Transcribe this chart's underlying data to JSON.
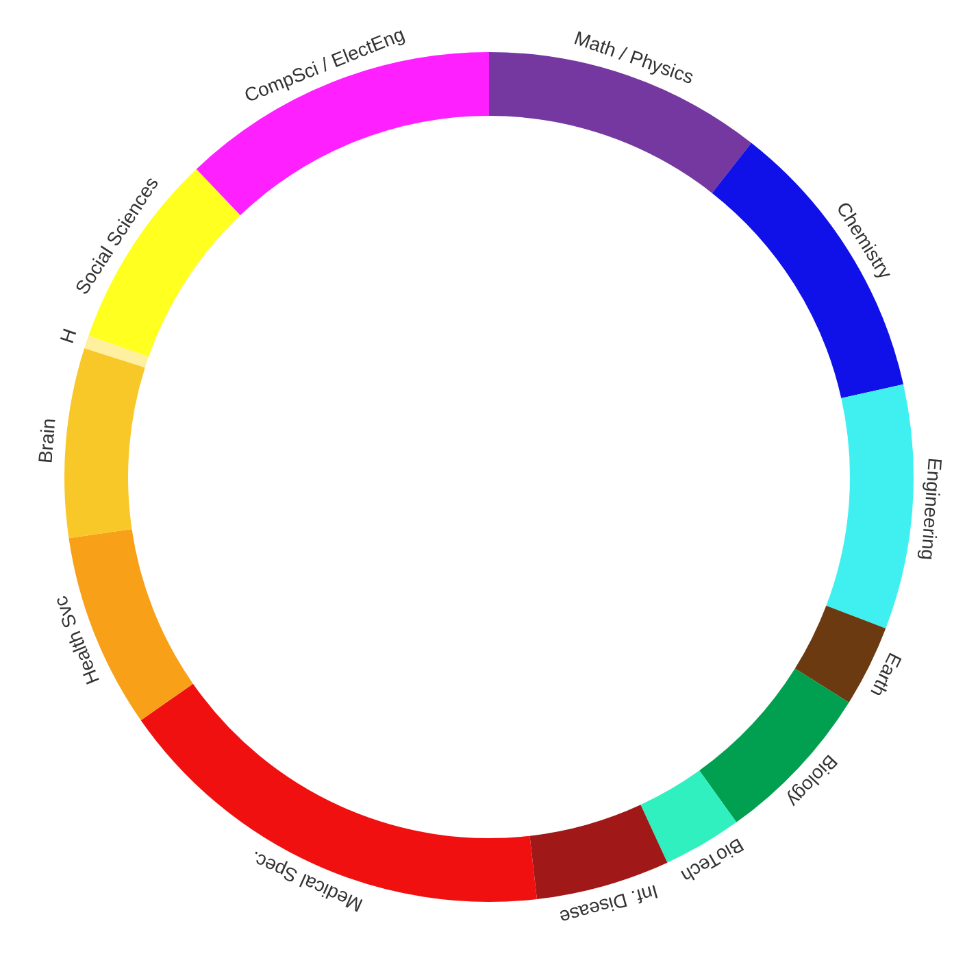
{
  "chart_data": {
    "type": "donut",
    "categories": [
      "Math / Physics",
      "Chemistry",
      "Engineering",
      "Earth",
      "Biology",
      "BioTech",
      "Inf. Disease",
      "Medical Spec.",
      "Health Svc",
      "Brain",
      "H",
      "Social Sciences",
      "CompSci / ElectEng"
    ],
    "values": [
      10.6,
      10.9,
      9.3,
      3.1,
      6.2,
      3.0,
      5.1,
      17.1,
      7.4,
      7.2,
      0.5,
      7.5,
      12.1
    ],
    "colors": [
      "#7438a0",
      "#1010e8",
      "#40f0f0",
      "#6b3a10",
      "#00a050",
      "#30f0c0",
      "#a01818",
      "#f01010",
      "#f8a018",
      "#f8c828",
      "#fff0a0",
      "#ffff20",
      "#ff20ff"
    ]
  }
}
